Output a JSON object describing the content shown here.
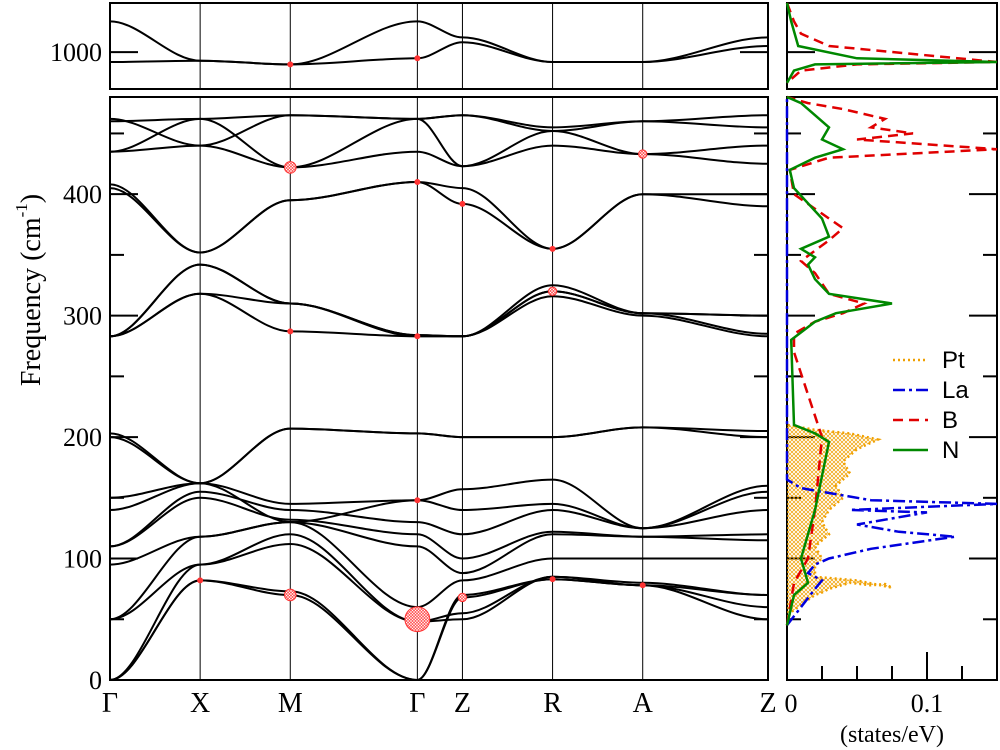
{
  "chart_data": [
    {
      "type": "line",
      "ylabel_main": "Frequency (cm",
      "ylabel_sup": "-1",
      "ylabel_close": ")",
      "k_labels": [
        "Γ",
        "X",
        "M",
        "Γ",
        "Z",
        "R",
        "A",
        "Z"
      ],
      "k_positions": [
        0,
        1,
        2,
        3.41,
        3.91,
        4.91,
        5.91,
        7.3
      ],
      "main_panel": {
        "ylim": [
          0,
          480
        ],
        "yticks": [
          0,
          100,
          200,
          300,
          400
        ],
        "yticks_minor": [
          50,
          150,
          250,
          350,
          450
        ]
      },
      "top_panel": {
        "ylim": [
          970,
          1040
        ],
        "yticks": [
          1000
        ]
      },
      "bands_main": [
        [
          0,
          82,
          70,
          0,
          70,
          83,
          78,
          50
        ],
        [
          0,
          82,
          73,
          0,
          68,
          83,
          78,
          60
        ],
        [
          0,
          95,
          120,
          48,
          50,
          85,
          78,
          70
        ],
        [
          50,
          95,
          112,
          48,
          55,
          85,
          80,
          70
        ],
        [
          50,
          118,
          130,
          60,
          82,
          100,
          100,
          100
        ],
        [
          95,
          118,
          130,
          110,
          88,
          120,
          118,
          115
        ],
        [
          110,
          150,
          132,
          120,
          100,
          122,
          118,
          120
        ],
        [
          110,
          155,
          140,
          130,
          120,
          140,
          125,
          140
        ],
        [
          140,
          162,
          145,
          148,
          140,
          145,
          125,
          155
        ],
        [
          150,
          162,
          130,
          148,
          157,
          165,
          125,
          160
        ],
        [
          200,
          162,
          207,
          203,
          200,
          200,
          208,
          200
        ],
        [
          203,
          162,
          207,
          203,
          200,
          200,
          208,
          205
        ],
        [
          283,
          318,
          287,
          283,
          283,
          316,
          300,
          283
        ],
        [
          283,
          318,
          310,
          283,
          283,
          320,
          302,
          285
        ],
        [
          283,
          342,
          310,
          284,
          283,
          320,
          302,
          300
        ],
        [
          283,
          342,
          310,
          284,
          283,
          325,
          302,
          300
        ],
        [
          408,
          352,
          395,
          410,
          392,
          355,
          400,
          390
        ],
        [
          405,
          352,
          395,
          410,
          405,
          355,
          400,
          400
        ],
        [
          435,
          440,
          422,
          435,
          423,
          440,
          433,
          425
        ],
        [
          435,
          462,
          422,
          462,
          423,
          452,
          433,
          440
        ],
        [
          460,
          462,
          465,
          462,
          465,
          452,
          460,
          455
        ],
        [
          462,
          440,
          465,
          462,
          465,
          455,
          460,
          465
        ]
      ],
      "bands_top": [
        [
          1025,
          993,
          990,
          1025,
          1012,
          992,
          992,
          1012
        ],
        [
          992,
          993,
          990,
          995,
          1008,
          992,
          992,
          1005
        ]
      ],
      "ep_dots": [
        {
          "k": 1,
          "w": 82,
          "size": 1
        },
        {
          "k": 2,
          "w": 70,
          "size": 2
        },
        {
          "k": 2,
          "w": 287,
          "size": 1
        },
        {
          "k": 2,
          "w": 422,
          "size": 2
        },
        {
          "k": 3.41,
          "w": 50,
          "size": 4
        },
        {
          "k": 3.41,
          "w": 283,
          "size": 1
        },
        {
          "k": 3.41,
          "w": 148,
          "size": 1
        },
        {
          "k": 3.41,
          "w": 410,
          "size": 1
        },
        {
          "k": 3.91,
          "w": 68,
          "size": 1.5
        },
        {
          "k": 3.91,
          "w": 392,
          "size": 1
        },
        {
          "k": 4.91,
          "w": 83,
          "size": 1
        },
        {
          "k": 4.91,
          "w": 320,
          "size": 1.5
        },
        {
          "k": 4.91,
          "w": 355,
          "size": 1
        },
        {
          "k": 5.91,
          "w": 433,
          "size": 1.5
        },
        {
          "k": 5.91,
          "w": 78,
          "size": 1
        },
        {
          "k": 2,
          "w": 990,
          "size": 1,
          "panel": "top"
        },
        {
          "k": 3.41,
          "w": 995,
          "size": 1,
          "panel": "top"
        }
      ],
      "dos_panel": {
        "xlabel": "(states/eV)",
        "xlim": [
          0,
          0.15
        ],
        "xticks": [
          0,
          0.1
        ],
        "xtick_labels": [
          "0",
          "0.1"
        ],
        "legend_position": "right",
        "series": [
          {
            "name": "Pt",
            "color": "#f0a000",
            "style": "dot",
            "points": [
              [
                0,
                45
              ],
              [
                0.002,
                55
              ],
              [
                0.01,
                62
              ],
              [
                0.02,
                70
              ],
              [
                0.025,
                72
              ],
              [
                0.03,
                75
              ],
              [
                0.045,
                80
              ],
              [
                0.06,
                78
              ],
              [
                0.07,
                79
              ],
              [
                0.075,
                76
              ],
              [
                0.05,
                82
              ],
              [
                0.02,
                85
              ],
              [
                0.02,
                95
              ],
              [
                0.025,
                100
              ],
              [
                0.02,
                110
              ],
              [
                0.03,
                120
              ],
              [
                0.025,
                130
              ],
              [
                0.03,
                140
              ],
              [
                0.04,
                150
              ],
              [
                0.035,
                160
              ],
              [
                0.045,
                170
              ],
              [
                0.04,
                180
              ],
              [
                0.05,
                190
              ],
              [
                0.065,
                198
              ],
              [
                0.045,
                203
              ],
              [
                0.02,
                206
              ],
              [
                0,
                210
              ]
            ]
          },
          {
            "name": "La",
            "color": "#0000dd",
            "style": "dashdot",
            "points": [
              [
                0,
                45
              ],
              [
                0.01,
                60
              ],
              [
                0.02,
                75
              ],
              [
                0.025,
                82
              ],
              [
                0.015,
                88
              ],
              [
                0.02,
                95
              ],
              [
                0.03,
                100
              ],
              [
                0.06,
                108
              ],
              [
                0.12,
                118
              ],
              [
                0.08,
                122
              ],
              [
                0.05,
                128
              ],
              [
                0.1,
                138
              ],
              [
                0.045,
                140
              ],
              [
                0.15,
                145
              ],
              [
                0.06,
                148
              ],
              [
                0.04,
                152
              ],
              [
                0.01,
                158
              ],
              [
                0,
                165
              ],
              [
                0,
                480
              ]
            ]
          },
          {
            "name": "B",
            "color": "#e00000",
            "style": "dash",
            "points": [
              [
                0,
                45
              ],
              [
                0.005,
                80
              ],
              [
                0.015,
                100
              ],
              [
                0.02,
                140
              ],
              [
                0.025,
                200
              ],
              [
                0.005,
                270
              ],
              [
                0.005,
                285
              ],
              [
                0.02,
                295
              ],
              [
                0.04,
                302
              ],
              [
                0.055,
                310
              ],
              [
                0.03,
                318
              ],
              [
                0.02,
                335
              ],
              [
                0.01,
                345
              ],
              [
                0.03,
                362
              ],
              [
                0.04,
                372
              ],
              [
                0.03,
                380
              ],
              [
                0.005,
                400
              ],
              [
                0.002,
                420
              ],
              [
                0.03,
                430
              ],
              [
                0.15,
                437
              ],
              [
                0.05,
                445
              ],
              [
                0.09,
                450
              ],
              [
                0.06,
                455
              ],
              [
                0.07,
                462
              ],
              [
                0.04,
                470
              ],
              [
                0.015,
                475
              ],
              [
                0,
                480
              ]
            ]
          },
          {
            "name": "N",
            "color": "#008800",
            "style": "solid",
            "points": [
              [
                0,
                45
              ],
              [
                0.005,
                70
              ],
              [
                0.015,
                80
              ],
              [
                0.01,
                100
              ],
              [
                0.02,
                140
              ],
              [
                0.03,
                196
              ],
              [
                0.02,
                203
              ],
              [
                0.005,
                210
              ],
              [
                0.003,
                280
              ],
              [
                0.02,
                295
              ],
              [
                0.035,
                302
              ],
              [
                0.075,
                310
              ],
              [
                0.03,
                318
              ],
              [
                0.02,
                330
              ],
              [
                0.015,
                342
              ],
              [
                0.02,
                348
              ],
              [
                0.01,
                355
              ],
              [
                0.03,
                365
              ],
              [
                0.025,
                380
              ],
              [
                0.005,
                405
              ],
              [
                0.002,
                420
              ],
              [
                0.02,
                430
              ],
              [
                0.04,
                437
              ],
              [
                0.025,
                445
              ],
              [
                0.03,
                455
              ],
              [
                0.02,
                465
              ],
              [
                0.01,
                475
              ],
              [
                0,
                480
              ]
            ]
          }
        ]
      },
      "dos_top": {
        "series": [
          {
            "name": "B",
            "color": "#e00000",
            "style": "dash",
            "points": [
              [
                0,
                1040
              ],
              [
                0.005,
                1025
              ],
              [
                0.01,
                1015
              ],
              [
                0.03,
                1005
              ],
              [
                0.15,
                992
              ],
              [
                0.05,
                990
              ],
              [
                0.01,
                985
              ],
              [
                0,
                975
              ]
            ]
          },
          {
            "name": "N",
            "color": "#008800",
            "style": "solid",
            "points": [
              [
                0,
                1040
              ],
              [
                0.003,
                1025
              ],
              [
                0.008,
                1005
              ],
              [
                0.05,
                995
              ],
              [
                0.15,
                992
              ],
              [
                0.02,
                990
              ],
              [
                0.005,
                985
              ],
              [
                0,
                975
              ]
            ]
          }
        ]
      }
    }
  ]
}
